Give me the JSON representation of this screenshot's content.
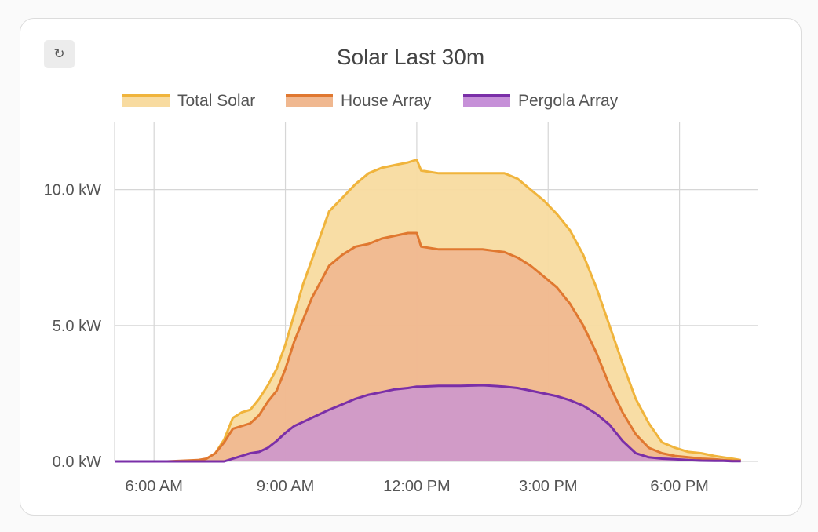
{
  "card": {
    "refresh_icon": "↻"
  },
  "chart_data": {
    "type": "area",
    "title": "Solar Last 30m",
    "ylabel": "",
    "xlabel": "",
    "x_unit": "hour of day",
    "ylim": [
      0,
      12.5
    ],
    "xlim": [
      5.1,
      19.8
    ],
    "y_ticks": [
      0,
      5,
      10
    ],
    "y_tick_labels": [
      "0.0 kW",
      "5.0 kW",
      "10.0 kW"
    ],
    "x_ticks": [
      6,
      9,
      12,
      15,
      18
    ],
    "x_tick_labels": [
      "6:00 AM",
      "9:00 AM",
      "12:00 PM",
      "3:00 PM",
      "6:00 PM"
    ],
    "grid": true,
    "legend_position": "top",
    "series": [
      {
        "name": "Total Solar",
        "line_color": "#f0b43c",
        "fill_color": "#f8dba0",
        "x": [
          5.1,
          6.3,
          7.0,
          7.2,
          7.4,
          7.6,
          7.8,
          8.0,
          8.2,
          8.4,
          8.6,
          8.8,
          9.0,
          9.2,
          9.4,
          9.6,
          9.8,
          10.0,
          10.3,
          10.6,
          10.9,
          11.2,
          11.5,
          11.8,
          12.0,
          12.1,
          12.5,
          13.0,
          13.5,
          14.0,
          14.3,
          14.6,
          14.9,
          15.2,
          15.5,
          15.8,
          16.1,
          16.4,
          16.7,
          17.0,
          17.3,
          17.6,
          17.9,
          18.2,
          18.5,
          18.8,
          19.0,
          19.2,
          19.4
        ],
        "y": [
          0,
          0,
          0,
          0.1,
          0.3,
          0.8,
          1.6,
          1.8,
          1.9,
          2.3,
          2.8,
          3.4,
          4.3,
          5.4,
          6.5,
          7.4,
          8.3,
          9.2,
          9.7,
          10.2,
          10.6,
          10.8,
          10.9,
          11.0,
          11.1,
          10.7,
          10.6,
          10.6,
          10.6,
          10.6,
          10.4,
          10.0,
          9.6,
          9.1,
          8.5,
          7.6,
          6.4,
          5.0,
          3.6,
          2.3,
          1.4,
          0.7,
          0.5,
          0.35,
          0.3,
          0.2,
          0.15,
          0.1,
          0.05
        ]
      },
      {
        "name": "House Array",
        "line_color": "#e07830",
        "fill_color": "#f0b890",
        "x": [
          5.1,
          6.3,
          7.0,
          7.2,
          7.4,
          7.6,
          7.8,
          8.0,
          8.2,
          8.4,
          8.6,
          8.8,
          9.0,
          9.2,
          9.4,
          9.6,
          9.8,
          10.0,
          10.3,
          10.6,
          10.9,
          11.2,
          11.5,
          11.8,
          12.0,
          12.1,
          12.5,
          13.0,
          13.5,
          14.0,
          14.3,
          14.6,
          14.9,
          15.2,
          15.5,
          15.8,
          16.1,
          16.4,
          16.7,
          17.0,
          17.3,
          17.6,
          17.9,
          18.2,
          18.5,
          18.8,
          19.0,
          19.2,
          19.4
        ],
        "y": [
          0,
          0,
          0.05,
          0.1,
          0.3,
          0.7,
          1.2,
          1.3,
          1.4,
          1.7,
          2.2,
          2.6,
          3.4,
          4.4,
          5.2,
          6.0,
          6.6,
          7.2,
          7.6,
          7.9,
          8.0,
          8.2,
          8.3,
          8.4,
          8.4,
          7.9,
          7.8,
          7.8,
          7.8,
          7.7,
          7.5,
          7.2,
          6.8,
          6.4,
          5.8,
          5.0,
          4.0,
          2.8,
          1.8,
          1.0,
          0.5,
          0.3,
          0.2,
          0.15,
          0.1,
          0.08,
          0.05,
          0.03,
          0.02
        ]
      },
      {
        "name": "Pergola Array",
        "line_color": "#7a2fa8",
        "fill_color": "#c690d8",
        "x": [
          5.1,
          6.3,
          7.0,
          7.2,
          7.4,
          7.6,
          7.8,
          8.0,
          8.2,
          8.4,
          8.6,
          8.8,
          9.0,
          9.2,
          9.4,
          9.6,
          9.8,
          10.0,
          10.3,
          10.6,
          10.9,
          11.2,
          11.5,
          11.8,
          12.0,
          12.1,
          12.5,
          13.0,
          13.5,
          14.0,
          14.3,
          14.6,
          14.9,
          15.2,
          15.5,
          15.8,
          16.1,
          16.4,
          16.7,
          17.0,
          17.3,
          17.6,
          17.9,
          18.2,
          18.5,
          18.8,
          19.0,
          19.2,
          19.4
        ],
        "y": [
          0,
          0,
          0,
          0,
          0,
          0,
          0.1,
          0.2,
          0.3,
          0.35,
          0.5,
          0.75,
          1.05,
          1.3,
          1.45,
          1.6,
          1.75,
          1.9,
          2.1,
          2.3,
          2.45,
          2.55,
          2.65,
          2.7,
          2.75,
          2.75,
          2.78,
          2.78,
          2.8,
          2.75,
          2.7,
          2.6,
          2.5,
          2.4,
          2.25,
          2.05,
          1.75,
          1.35,
          0.75,
          0.3,
          0.15,
          0.1,
          0.08,
          0.05,
          0.03,
          0.02,
          0.02,
          0.01,
          0.01
        ]
      }
    ]
  }
}
